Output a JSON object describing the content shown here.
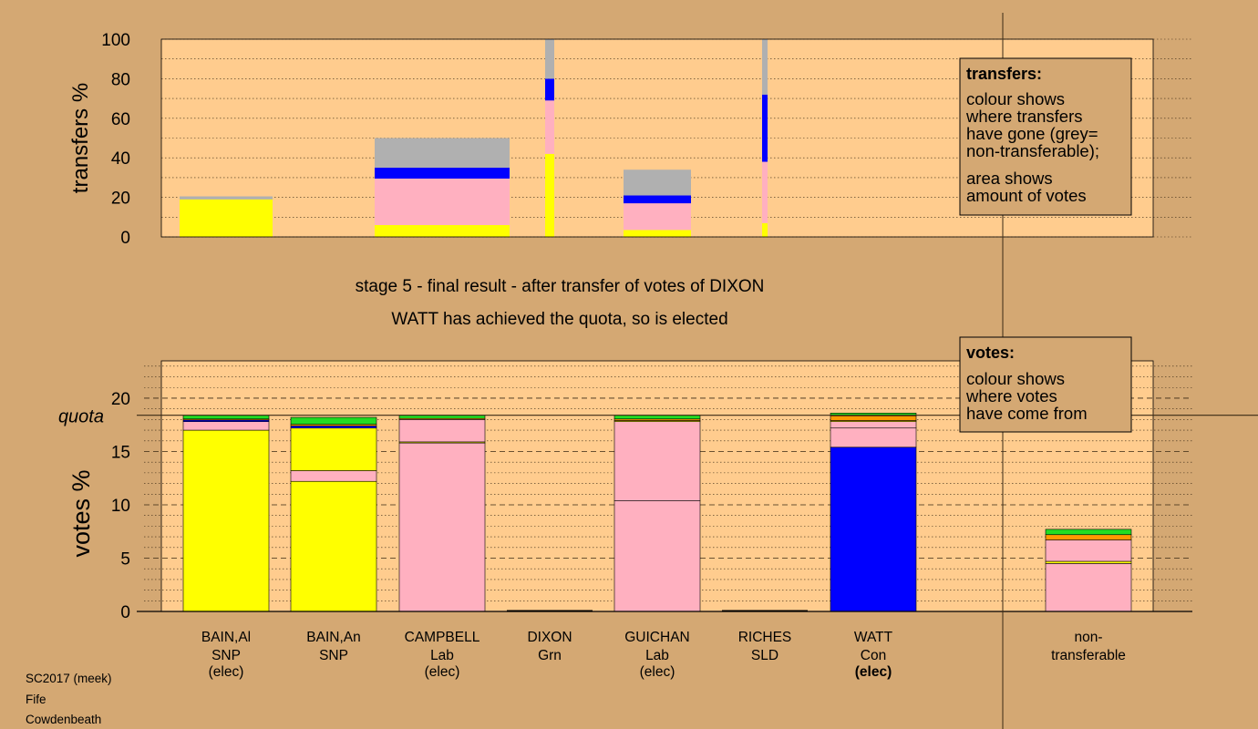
{
  "colors": {
    "SNP": "#ffff00",
    "Lab": "#ffb0c0",
    "Con": "#0000ff",
    "Grn": "#22dd22",
    "SLD": "#ff9900",
    "nontransferable": "#b0b0b0",
    "plot_bg": "#ffcc8e",
    "page_bg": "#d4a873"
  },
  "stage_title": "stage 5 - final result - after transfer of votes of DIXON",
  "stage_subtitle": "WATT has achieved the quota, so is elected",
  "meta": [
    "SC2017 (meek)",
    "Fife",
    "Cowdenbeath"
  ],
  "legend_transfers": {
    "title": "transfers:",
    "lines": [
      "colour shows",
      "where transfers",
      "have gone (grey=",
      "non-transferable);",
      "area shows",
      "amount of votes"
    ]
  },
  "legend_votes": {
    "title": "votes:",
    "lines": [
      "colour shows",
      "where votes",
      "have come from"
    ]
  },
  "chart_data": [
    {
      "type": "bar",
      "id": "transfers",
      "ylabel": "transfers %",
      "ylim": [
        0,
        100
      ],
      "yticks": [
        0,
        20,
        40,
        60,
        80,
        100
      ],
      "legend_position": "top-right",
      "bars": [
        {
          "candidate": "BAIN,Al",
          "width_share": 1.0,
          "segments": [
            {
              "party": "SNP",
              "value": 19
            },
            {
              "party": "nontransferable",
              "value": 1.5
            }
          ]
        },
        {
          "candidate": "CAMPBELL",
          "width_share": 1.45,
          "segments": [
            {
              "party": "SNP",
              "value": 6
            },
            {
              "party": "Lab",
              "value": 23.5
            },
            {
              "party": "Con",
              "value": 5.5
            },
            {
              "party": "nontransferable",
              "value": 15
            }
          ]
        },
        {
          "candidate": "DIXON-1",
          "width_share": 0.1,
          "segments": [
            {
              "party": "SNP",
              "value": 42
            },
            {
              "party": "Lab",
              "value": 27
            },
            {
              "party": "Con",
              "value": 11
            },
            {
              "party": "nontransferable",
              "value": 20
            }
          ]
        },
        {
          "candidate": "GUICHAN",
          "width_share": 0.72,
          "segments": [
            {
              "party": "SNP",
              "value": 3.5
            },
            {
              "party": "Lab",
              "value": 13.5
            },
            {
              "party": "Con",
              "value": 4
            },
            {
              "party": "nontransferable",
              "value": 13
            }
          ]
        },
        {
          "candidate": "DIXON-2",
          "width_share": 0.06,
          "segments": [
            {
              "party": "SNP",
              "value": 7
            },
            {
              "party": "Lab",
              "value": 31
            },
            {
              "party": "Con",
              "value": 34
            },
            {
              "party": "nontransferable",
              "value": 28
            }
          ]
        }
      ]
    },
    {
      "type": "bar",
      "id": "votes",
      "ylabel": "votes %",
      "ylim": [
        0,
        23.5
      ],
      "yticks": [
        0,
        5,
        10,
        15,
        20
      ],
      "quota": 18.4,
      "quota_label": "quota",
      "legend_position": "top-right",
      "categories": [
        {
          "name": "BAIN,Al",
          "party": "SNP",
          "status": "(elec)",
          "status_bold": false,
          "segments": [
            {
              "party": "SNP",
              "value": 17.0
            },
            {
              "party": "Lab",
              "value": 0.8
            },
            {
              "party": "Con",
              "value": 0.15
            },
            {
              "party": "SLD",
              "value": 0.1
            },
            {
              "party": "Grn",
              "value": 0.35
            }
          ]
        },
        {
          "name": "BAIN,An",
          "party": "SNP",
          "status": "",
          "status_bold": false,
          "segments": [
            {
              "party": "SNP",
              "value": 12.2
            },
            {
              "party": "Lab",
              "value": 1.0
            },
            {
              "party": "SNP",
              "value": 4.0
            },
            {
              "party": "Con",
              "value": 0.2
            },
            {
              "party": "SLD",
              "value": 0.15
            },
            {
              "party": "Grn",
              "value": 0.65
            }
          ]
        },
        {
          "name": "CAMPBELL",
          "party": "Lab",
          "status": "(elec)",
          "status_bold": false,
          "segments": [
            {
              "party": "Lab",
              "value": 15.8
            },
            {
              "party": "SNP",
              "value": 0.1
            },
            {
              "party": "Lab",
              "value": 2.1
            },
            {
              "party": "SLD",
              "value": 0.1
            },
            {
              "party": "Grn",
              "value": 0.3
            }
          ]
        },
        {
          "name": "DIXON",
          "party": "Grn",
          "status": "",
          "status_bold": false,
          "segments": []
        },
        {
          "name": "GUICHAN",
          "party": "Lab",
          "status": "(elec)",
          "status_bold": false,
          "segments": [
            {
              "party": "Lab",
              "value": 10.4
            },
            {
              "party": "Lab",
              "value": 7.4
            },
            {
              "party": "SNP",
              "value": 0.1
            },
            {
              "party": "SLD",
              "value": 0.15
            },
            {
              "party": "Grn",
              "value": 0.35
            }
          ]
        },
        {
          "name": "RICHES",
          "party": "SLD",
          "status": "",
          "status_bold": false,
          "segments": []
        },
        {
          "name": "WATT",
          "party": "Con",
          "status": "(elec)",
          "status_bold": true,
          "segments": [
            {
              "party": "Con",
              "value": 15.4
            },
            {
              "party": "Lab",
              "value": 1.8
            },
            {
              "party": "Lab",
              "value": 0.6
            },
            {
              "party": "SNP",
              "value": 0.1
            },
            {
              "party": "SLD",
              "value": 0.45
            },
            {
              "party": "Grn",
              "value": 0.25
            }
          ]
        }
      ],
      "nontransferable": {
        "name": "non-",
        "name2": "transferable",
        "segments": [
          {
            "party": "Lab",
            "value": 4.5
          },
          {
            "party": "SNP",
            "value": 0.2
          },
          {
            "party": "Lab",
            "value": 2.0
          },
          {
            "party": "SLD",
            "value": 0.5
          },
          {
            "party": "Grn",
            "value": 0.5
          }
        ]
      }
    }
  ]
}
